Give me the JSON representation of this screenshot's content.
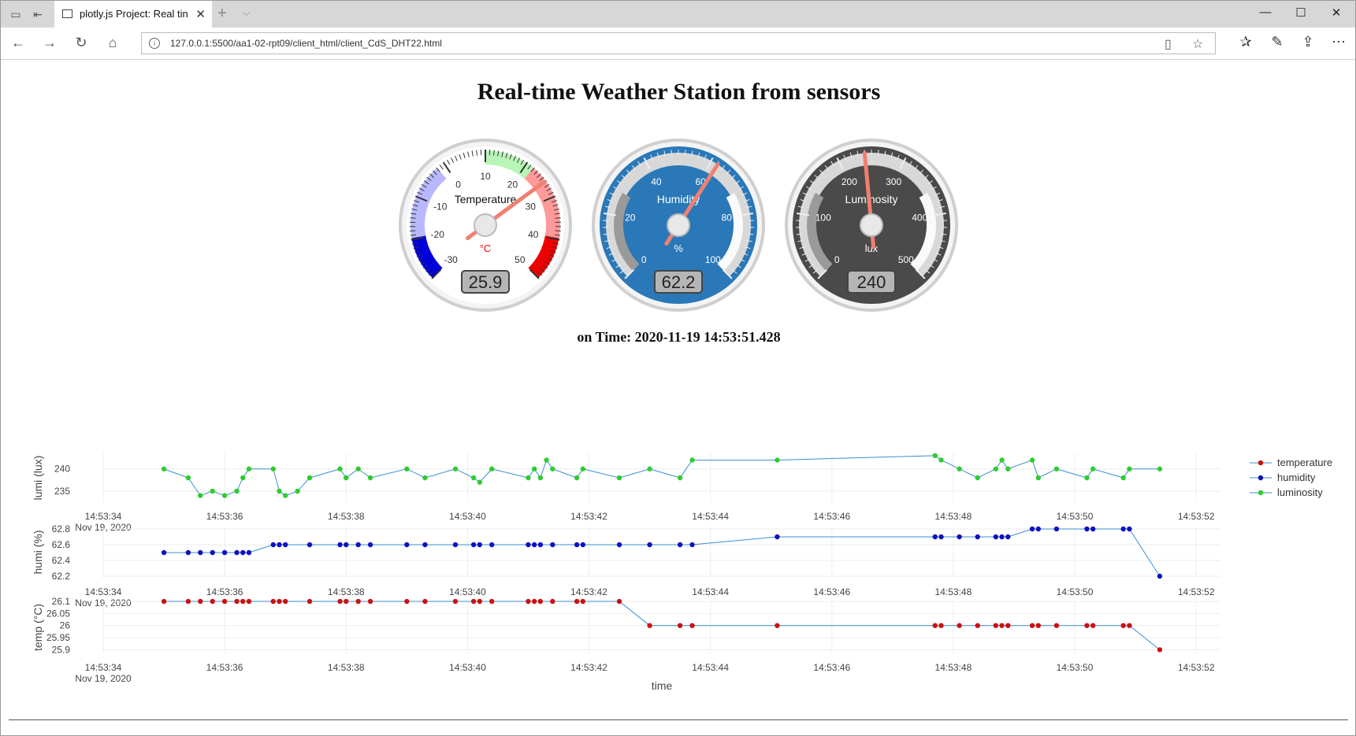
{
  "browser": {
    "tab_title": "plotly.js Project: Real tin",
    "url": "127.0.0.1:5500/aa1-02-rpt09/client_html/client_CdS_DHT22.html"
  },
  "page": {
    "title": "Real-time Weather Station from sensors",
    "on_time": "on Time: 2020-11-19 14:53:51.428"
  },
  "gauges": [
    {
      "title": "Temperature",
      "unit": "°C",
      "value": 25.9,
      "display": "25.9",
      "min": -30,
      "max": 50,
      "ticks": [
        "-30",
        "-20",
        "-10",
        "0",
        "10",
        "20",
        "30",
        "40",
        "50"
      ],
      "theme": "light"
    },
    {
      "title": "Humidity",
      "unit": "%",
      "value": 62.2,
      "display": "62.2",
      "min": 0,
      "max": 100,
      "ticks": [
        "0",
        "20",
        "40",
        "60",
        "80",
        "100"
      ],
      "theme": "blue"
    },
    {
      "title": "Luminosity",
      "unit": "lux",
      "value": 240,
      "display": "240",
      "min": 0,
      "max": 500,
      "ticks": [
        "0",
        "100",
        "200",
        "300",
        "400",
        "500"
      ],
      "theme": "dark"
    }
  ],
  "chart_data": {
    "type": "line",
    "xlabel": "time",
    "x_ticks": [
      "14:53:34",
      "14:53:36",
      "14:53:38",
      "14:53:40",
      "14:53:42",
      "14:53:44",
      "14:53:46",
      "14:53:48",
      "14:53:50",
      "14:53:52"
    ],
    "x_date_label": "Nov 19, 2020",
    "x_range": [
      34.0,
      52.4
    ],
    "legend": "right",
    "panels": [
      {
        "name": "luminosity",
        "ylabel": "lumi (lux)",
        "yticks": [
          "240",
          "235"
        ],
        "ylim": [
          232.5,
          243.5
        ],
        "color": "#2ecc2e",
        "x": [
          35.0,
          35.4,
          35.6,
          35.8,
          36.0,
          36.2,
          36.3,
          36.4,
          36.8,
          36.9,
          37.0,
          37.2,
          37.4,
          37.9,
          38.0,
          38.2,
          38.4,
          39.0,
          39.3,
          39.8,
          40.1,
          40.2,
          40.4,
          41.0,
          41.1,
          41.2,
          41.3,
          41.4,
          41.8,
          41.9,
          42.5,
          43.0,
          43.5,
          43.7,
          45.1,
          47.7,
          47.8,
          48.1,
          48.4,
          48.7,
          48.8,
          48.9,
          49.3,
          49.4,
          49.7,
          50.2,
          50.3,
          50.8,
          50.9,
          51.4
        ],
        "y": [
          240,
          238,
          234,
          235,
          234,
          235,
          238,
          240,
          240,
          235,
          234,
          235,
          238,
          240,
          238,
          240,
          238,
          240,
          238,
          240,
          238,
          237,
          240,
          238,
          240,
          238,
          242,
          240,
          238,
          240,
          238,
          240,
          238,
          242,
          242,
          243,
          242,
          240,
          238,
          240,
          242,
          240,
          242,
          238,
          240,
          238,
          240,
          238,
          240,
          240
        ]
      },
      {
        "name": "humidity",
        "ylabel": "humi (%)",
        "yticks": [
          "62.8",
          "62.6",
          "62.4",
          "62.2"
        ],
        "ylim": [
          62.18,
          62.83
        ],
        "color": "#1010c0",
        "x": [
          35.0,
          35.4,
          35.6,
          35.8,
          36.0,
          36.2,
          36.3,
          36.4,
          36.8,
          36.9,
          37.0,
          37.4,
          37.9,
          38.0,
          38.2,
          38.4,
          39.0,
          39.3,
          39.8,
          40.1,
          40.2,
          40.4,
          41.0,
          41.1,
          41.2,
          41.4,
          41.8,
          41.9,
          42.5,
          43.0,
          43.5,
          43.7,
          45.1,
          47.7,
          47.8,
          48.1,
          48.4,
          48.7,
          48.8,
          48.9,
          49.3,
          49.4,
          49.7,
          50.2,
          50.3,
          50.8,
          50.9,
          51.4
        ],
        "y": [
          62.5,
          62.5,
          62.5,
          62.5,
          62.5,
          62.5,
          62.5,
          62.5,
          62.6,
          62.6,
          62.6,
          62.6,
          62.6,
          62.6,
          62.6,
          62.6,
          62.6,
          62.6,
          62.6,
          62.6,
          62.6,
          62.6,
          62.6,
          62.6,
          62.6,
          62.6,
          62.6,
          62.6,
          62.6,
          62.6,
          62.6,
          62.6,
          62.7,
          62.7,
          62.7,
          62.7,
          62.7,
          62.7,
          62.7,
          62.7,
          62.8,
          62.8,
          62.8,
          62.8,
          62.8,
          62.8,
          62.8,
          62.2
        ]
      },
      {
        "name": "temperature",
        "ylabel": "temp (°C)",
        "yticks": [
          "26.1",
          "26.05",
          "26",
          "25.95",
          "25.9"
        ],
        "ylim": [
          25.885,
          26.1
        ],
        "color": "#cc1010",
        "x": [
          35.0,
          35.4,
          35.6,
          35.8,
          36.0,
          36.2,
          36.3,
          36.4,
          36.8,
          36.9,
          37.0,
          37.4,
          37.9,
          38.0,
          38.2,
          38.4,
          39.0,
          39.3,
          39.8,
          40.1,
          40.2,
          40.4,
          41.0,
          41.1,
          41.2,
          41.4,
          41.8,
          41.9,
          42.5,
          43.0,
          43.5,
          43.7,
          45.1,
          47.7,
          47.8,
          48.1,
          48.4,
          48.7,
          48.8,
          48.9,
          49.3,
          49.4,
          49.7,
          50.2,
          50.3,
          50.8,
          50.9,
          51.4
        ],
        "y": [
          26.1,
          26.1,
          26.1,
          26.1,
          26.1,
          26.1,
          26.1,
          26.1,
          26.1,
          26.1,
          26.1,
          26.1,
          26.1,
          26.1,
          26.1,
          26.1,
          26.1,
          26.1,
          26.1,
          26.1,
          26.1,
          26.1,
          26.1,
          26.1,
          26.1,
          26.1,
          26.1,
          26.1,
          26.1,
          26.0,
          26.0,
          26.0,
          26.0,
          26.0,
          26.0,
          26.0,
          26.0,
          26.0,
          26.0,
          26.0,
          26.0,
          26.0,
          26.0,
          26.0,
          26.0,
          26.0,
          26.0,
          25.9
        ]
      }
    ],
    "legend_order": [
      "temperature",
      "humidity",
      "luminosity"
    ]
  }
}
